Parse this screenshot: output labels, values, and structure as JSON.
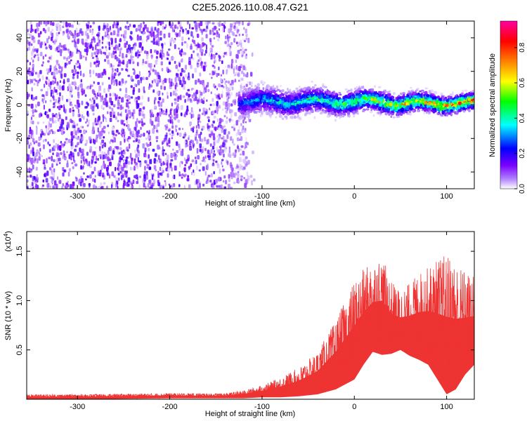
{
  "figure": {
    "title": "C2E5.2026.110.08.47.G21"
  },
  "chart_data": [
    {
      "type": "heatmap",
      "xlabel": "Height of straight line (km)",
      "ylabel": "Frequency (Hz)",
      "xlim": [
        -355,
        130
      ],
      "ylim": [
        -50,
        50
      ],
      "xticks": [
        -300,
        -200,
        -100,
        0,
        100
      ],
      "xtick_labels": [
        "-300",
        "-200",
        "-100",
        "0",
        "100"
      ],
      "yticks": [
        -40,
        -20,
        0,
        20,
        40
      ],
      "ytick_labels": [
        "-40",
        "-20",
        "0",
        "20",
        "40"
      ],
      "grid": false,
      "colorbar": {
        "label": "Normalized spectral amplitude",
        "range": [
          0,
          0.95
        ],
        "ticks": [
          0,
          0.2,
          0.4,
          0.6,
          0.8
        ],
        "tick_labels": [
          "0.0",
          "0.2",
          "0.4",
          "0.6",
          "0.8"
        ],
        "colors": [
          "#ffffff",
          "#7a00ff",
          "#0000ff",
          "#00ffff",
          "#00ff00",
          "#ffff00",
          "#ff8000",
          "#ff0000",
          "#ff00a0"
        ]
      },
      "regions": [
        {
          "name": "broadband noise",
          "x_range": [
            -355,
            -120
          ],
          "freq_range": [
            -50,
            50
          ],
          "amplitude": 0.1
        },
        {
          "name": "signal band",
          "x_range": [
            -125,
            130
          ],
          "center_hz": 2,
          "halfwidth_hz": 12,
          "peak_amplitude": 0.9
        }
      ]
    },
    {
      "type": "line",
      "xlabel": "Height of straight line (km)",
      "ylabel": "SNR (10 * v/v)",
      "multiplier_label": "(x10",
      "multiplier_exp": "4",
      "multiplier_close": ")",
      "xlim": [
        -355,
        130
      ],
      "ylim": [
        0,
        1.7
      ],
      "xticks": [
        -300,
        -200,
        -100,
        0,
        100
      ],
      "xtick_labels": [
        "-300",
        "-200",
        "-100",
        "0",
        "100"
      ],
      "yticks": [
        0.5,
        1.0,
        1.5
      ],
      "ytick_labels": [
        "0.5",
        "1.0",
        "1.5"
      ],
      "color": "#ee3333",
      "grid": false,
      "series": [
        {
          "name": "SNR envelope",
          "x": [
            -355,
            -300,
            -200,
            -140,
            -120,
            -100,
            -80,
            -60,
            -40,
            -20,
            0,
            10,
            20,
            30,
            40,
            50,
            60,
            70,
            80,
            90,
            100,
            110,
            120,
            130
          ],
          "upper": [
            0.05,
            0.05,
            0.06,
            0.06,
            0.09,
            0.14,
            0.22,
            0.32,
            0.48,
            0.8,
            1.2,
            1.32,
            1.4,
            1.45,
            1.2,
            1.1,
            1.18,
            1.28,
            1.34,
            1.42,
            1.48,
            1.4,
            1.3,
            1.25
          ],
          "lower": [
            0.0,
            0.0,
            0.01,
            0.01,
            0.01,
            0.02,
            0.02,
            0.03,
            0.05,
            0.1,
            0.2,
            0.35,
            0.48,
            0.45,
            0.46,
            0.5,
            0.44,
            0.4,
            0.35,
            0.2,
            0.05,
            0.1,
            0.25,
            0.35
          ]
        }
      ]
    }
  ]
}
